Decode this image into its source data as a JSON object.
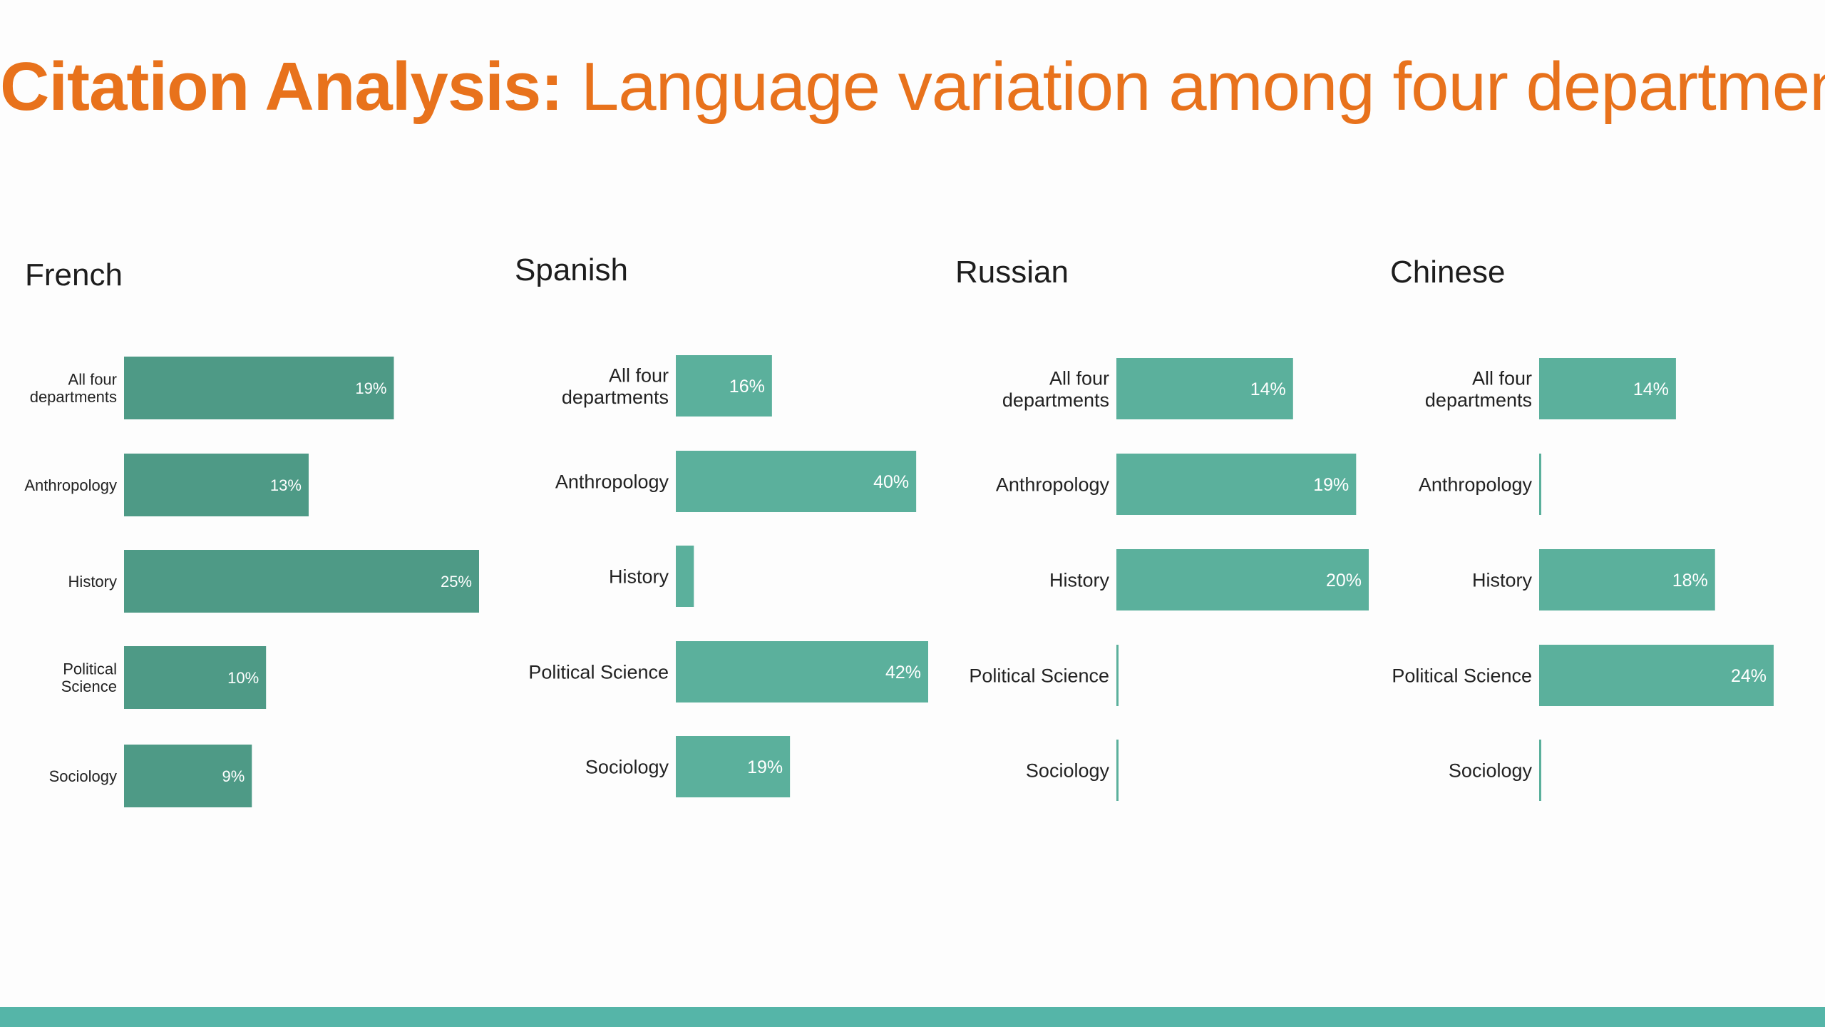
{
  "title": {
    "bold": "Citation Analysis:",
    "rest": "Language variation among four departments"
  },
  "colors": {
    "title": "#e8721c",
    "french_bar": "#4e9a86",
    "bar": "#5bb09c",
    "footer": "#55b5a8"
  },
  "chart_data": [
    {
      "type": "bar",
      "orientation": "horizontal",
      "title": "French",
      "categories": [
        "All four departments",
        "Anthropology",
        "History",
        "Political Science",
        "Sociology"
      ],
      "category_lines": [
        [
          "All four",
          "departments"
        ],
        [
          "Anthropology"
        ],
        [
          "History"
        ],
        [
          "Political",
          "Science"
        ],
        [
          "Sociology"
        ]
      ],
      "values": [
        19,
        13,
        25,
        10,
        9
      ],
      "value_labels": [
        "19%",
        "13%",
        "25%",
        "10%",
        "9%"
      ],
      "xlim": [
        0,
        25
      ]
    },
    {
      "type": "bar",
      "orientation": "horizontal",
      "title": "Spanish",
      "categories": [
        "All four departments",
        "Anthropology",
        "History",
        "Political Science",
        "Sociology"
      ],
      "category_lines": [
        [
          "All four",
          "departments"
        ],
        [
          "Anthropology"
        ],
        [
          "History"
        ],
        [
          "Political Science"
        ],
        [
          "Sociology"
        ]
      ],
      "values": [
        16,
        40,
        3,
        42,
        19
      ],
      "value_labels": [
        "16%",
        "40%",
        "",
        "42%",
        "19%"
      ],
      "xlim": [
        0,
        42
      ]
    },
    {
      "type": "bar",
      "orientation": "horizontal",
      "title": "Russian",
      "categories": [
        "All four departments",
        "Anthropology",
        "History",
        "Political Science",
        "Sociology"
      ],
      "category_lines": [
        [
          "All four",
          "departments"
        ],
        [
          "Anthropology"
        ],
        [
          "History"
        ],
        [
          "Political Science"
        ],
        [
          "Sociology"
        ]
      ],
      "values": [
        14,
        19,
        20,
        0,
        0
      ],
      "value_labels": [
        "14%",
        "19%",
        "20%",
        "",
        ""
      ],
      "xlim": [
        0,
        20
      ]
    },
    {
      "type": "bar",
      "orientation": "horizontal",
      "title": "Chinese",
      "categories": [
        "All four departments",
        "Anthropology",
        "History",
        "Political Science",
        "Sociology"
      ],
      "category_lines": [
        [
          "All four",
          "departments"
        ],
        [
          "Anthropology"
        ],
        [
          "History"
        ],
        [
          "Political Science"
        ],
        [
          "Sociology"
        ]
      ],
      "values": [
        14,
        0,
        18,
        24,
        0
      ],
      "value_labels": [
        "14%",
        "",
        "18%",
        "24%",
        ""
      ],
      "xlim": [
        0,
        24
      ]
    }
  ]
}
